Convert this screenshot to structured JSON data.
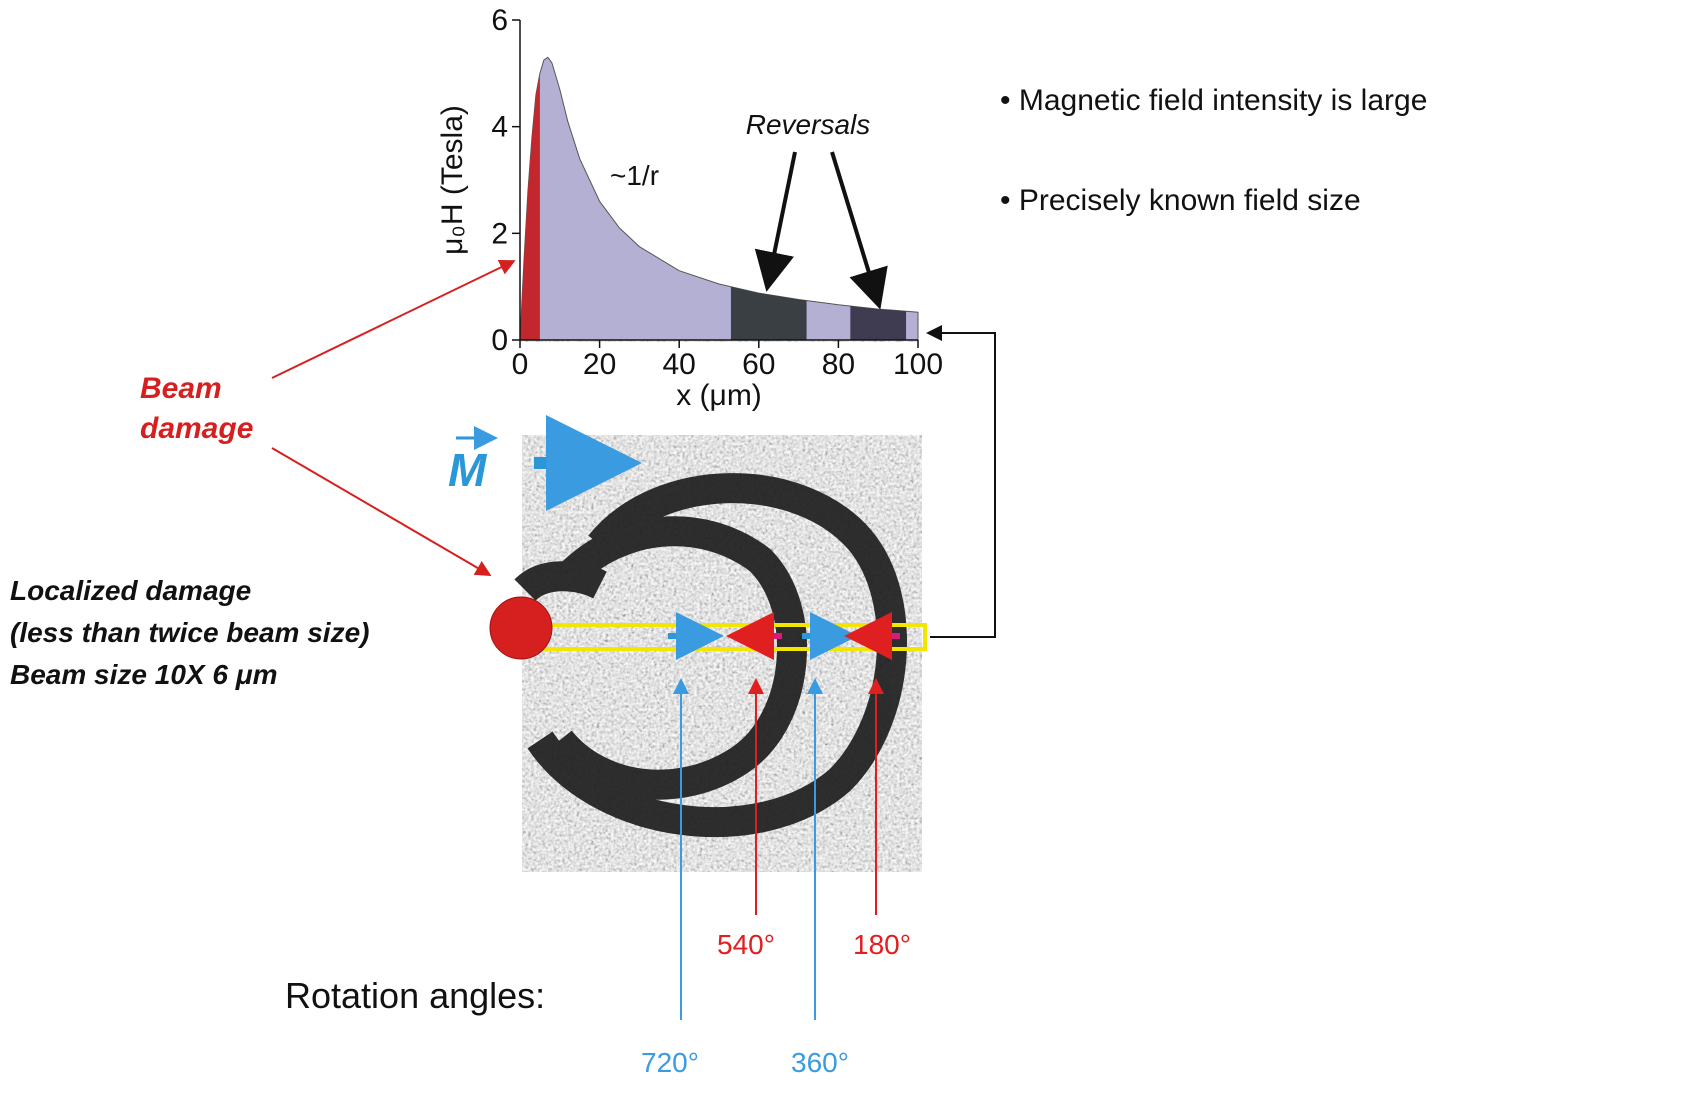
{
  "chart_data": {
    "type": "area",
    "ylabel": "μ₀H (Tesla)",
    "xlabel": "x (μm)",
    "x": [
      0,
      1,
      2,
      3,
      4,
      5,
      6,
      7,
      8,
      10,
      12,
      15,
      20,
      25,
      30,
      40,
      50,
      60,
      70,
      80,
      90,
      100
    ],
    "values": [
      0,
      1.5,
      2.8,
      3.8,
      4.6,
      5.0,
      5.25,
      5.3,
      5.2,
      4.7,
      4.1,
      3.4,
      2.6,
      2.1,
      1.75,
      1.3,
      1.05,
      0.88,
      0.76,
      0.66,
      0.58,
      0.52
    ],
    "color": "#b4b0d4",
    "bands": [
      {
        "from": 0,
        "to": 5,
        "color": "#c1272d"
      },
      {
        "from": 53,
        "to": 72,
        "color": "#3a3f44"
      },
      {
        "from": 83,
        "to": 97,
        "color": "#3f3c52"
      }
    ],
    "xlim": [
      0,
      100
    ],
    "ylim": [
      0,
      6
    ],
    "xticks": [
      0,
      20,
      40,
      60,
      80,
      100
    ],
    "yticks": [
      0,
      2,
      4,
      6
    ],
    "annotations": [
      "~1/r",
      "Reversals"
    ]
  },
  "bullets": [
    "Magnetic field intensity is large",
    "Precisely known field size"
  ],
  "labels": {
    "beam_damage": [
      "Beam",
      "damage"
    ],
    "magnetization": "M",
    "localized": [
      "Localized damage",
      "(less than twice beam size)",
      "Beam size 10X 6 μm"
    ],
    "rotation_title": "Rotation angles:",
    "angles": [
      "540°",
      "180°",
      "720°",
      "360°"
    ]
  }
}
